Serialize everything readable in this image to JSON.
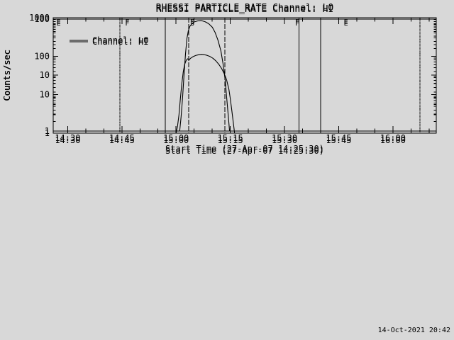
{
  "colors": {
    "background": "#d8d8d8",
    "foreground": "#000000"
  },
  "timestamp": "14-Oct-2021 20:42",
  "chart_data": [
    {
      "type": "line",
      "title": "RHESSI PARTICLE_RATE Channel: LO",
      "ylabel": "Counts/sec",
      "xlabel": "Start Time (27-Apr-07 14:25:30)",
      "legend_label": "Channel: LO",
      "legend_position": "top-left",
      "yscale": "log",
      "ylim": [
        1,
        1000
      ],
      "yticks": [
        1,
        10,
        100,
        1000
      ],
      "x_domain_minutes": [
        866,
        972
      ],
      "xticks": [
        {
          "t": 870,
          "label": "14:30"
        },
        {
          "t": 885,
          "label": "14:45"
        },
        {
          "t": 900,
          "label": "15:00"
        },
        {
          "t": 915,
          "label": "15:15"
        },
        {
          "t": 930,
          "label": "15:30"
        },
        {
          "t": 945,
          "label": "15:45"
        },
        {
          "t": 960,
          "label": "16:00"
        }
      ],
      "event_lines": [
        {
          "t": 884.5,
          "style": "dotted"
        },
        {
          "t": 897.0,
          "style": "solid"
        },
        {
          "t": 903.5,
          "style": "dashed"
        },
        {
          "t": 913.5,
          "style": "dashed"
        },
        {
          "t": 934.0,
          "style": "solid"
        },
        {
          "t": 940.0,
          "style": "solid"
        },
        {
          "t": 967.5,
          "style": "dotted"
        }
      ],
      "event_letters": [
        {
          "t": 867.5,
          "char": "E"
        },
        {
          "t": 886.5,
          "char": "F"
        },
        {
          "t": 904.5,
          "char": "S"
        },
        {
          "t": 933.5,
          "char": "F"
        },
        {
          "t": 947.0,
          "char": "E"
        }
      ],
      "series": [
        {
          "name": "Channel: LO",
          "points": [
            [
              866,
              1
            ],
            [
              900,
              1
            ],
            [
              900.4,
              1.5
            ],
            [
              900.8,
              3
            ],
            [
              901.2,
              8
            ],
            [
              901.6,
              20
            ],
            [
              902,
              40
            ],
            [
              902.4,
              62
            ],
            [
              902.8,
              78
            ],
            [
              903.2,
              86
            ],
            [
              903.6,
              80
            ],
            [
              904,
              88
            ],
            [
              904.6,
              96
            ],
            [
              905.4,
              104
            ],
            [
              906.2,
              109
            ],
            [
              907,
              112
            ],
            [
              907.8,
              110
            ],
            [
              908.6,
              105
            ],
            [
              909.4,
              98
            ],
            [
              910.2,
              88
            ],
            [
              911,
              76
            ],
            [
              911.8,
              62
            ],
            [
              912.6,
              48
            ],
            [
              913.4,
              34
            ],
            [
              914,
              24
            ],
            [
              914.6,
              14
            ],
            [
              915,
              8
            ],
            [
              915.4,
              4
            ],
            [
              915.8,
              2
            ],
            [
              916.2,
              1
            ],
            [
              972,
              1
            ]
          ]
        }
      ]
    },
    {
      "type": "line",
      "title": "RHESSI PARTICLE_RATE Channel: HI",
      "ylabel": "Counts/sec",
      "xlabel": "Start Time (27-Apr-07 14:25:30)",
      "legend_label": "Channel: HI",
      "legend_position": "top-left",
      "yscale": "log",
      "ylim": [
        1,
        100
      ],
      "yticks": [
        1,
        10,
        100
      ],
      "x_domain_minutes": [
        866,
        972
      ],
      "xticks": [
        {
          "t": 870,
          "label": "14:30"
        },
        {
          "t": 885,
          "label": "14:45"
        },
        {
          "t": 900,
          "label": "15:00"
        },
        {
          "t": 915,
          "label": "15:15"
        },
        {
          "t": 930,
          "label": "15:30"
        },
        {
          "t": 945,
          "label": "15:45"
        },
        {
          "t": 960,
          "label": "16:00"
        }
      ],
      "event_lines": [
        {
          "t": 884.5,
          "style": "dotted"
        },
        {
          "t": 897.0,
          "style": "solid"
        },
        {
          "t": 903.5,
          "style": "dashed"
        },
        {
          "t": 913.5,
          "style": "dashed"
        },
        {
          "t": 934.0,
          "style": "solid"
        },
        {
          "t": 940.0,
          "style": "solid"
        },
        {
          "t": 967.5,
          "style": "dotted"
        }
      ],
      "event_letters": [
        {
          "t": 867.5,
          "char": "E"
        },
        {
          "t": 886.5,
          "char": "F"
        },
        {
          "t": 904.5,
          "char": "S"
        },
        {
          "t": 933.5,
          "char": "F"
        },
        {
          "t": 947.0,
          "char": "E"
        }
      ],
      "series": [
        {
          "name": "Channel: HI",
          "points": [
            [
              866,
              1
            ],
            [
              901,
              1
            ],
            [
              901.4,
              1.8
            ],
            [
              901.8,
              4
            ],
            [
              902.2,
              10
            ],
            [
              902.6,
              24
            ],
            [
              903,
              45
            ],
            [
              903.4,
              62
            ],
            [
              903.8,
              74
            ],
            [
              904.4,
              83
            ],
            [
              905,
              89
            ],
            [
              906,
              93
            ],
            [
              907,
              94
            ],
            [
              908,
              90
            ],
            [
              909,
              83
            ],
            [
              910,
              72
            ],
            [
              910.8,
              58
            ],
            [
              911.6,
              42
            ],
            [
              912.4,
              27
            ],
            [
              913,
              16
            ],
            [
              913.6,
              8
            ],
            [
              914,
              4
            ],
            [
              914.4,
              2
            ],
            [
              914.8,
              1
            ],
            [
              972,
              1
            ]
          ]
        }
      ]
    }
  ]
}
